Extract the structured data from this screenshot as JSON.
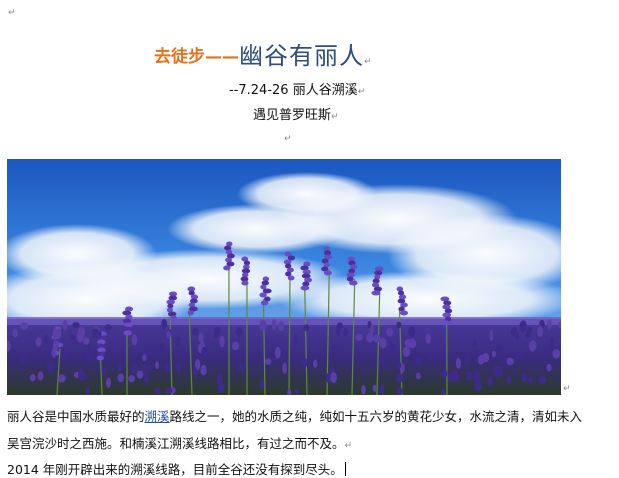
{
  "document": {
    "paragraph_mark": "↵",
    "title": {
      "prefix": "去徒步——",
      "main": "幽谷有丽人"
    },
    "subtitle_date": "--7.24-26 丽人谷溯溪",
    "subtitle_provence": "遇见普罗旺斯",
    "hero_image": {
      "subject": "lavender field under blue sky"
    },
    "paragraphs": [
      {
        "before": "丽人谷是中国水质最好的",
        "link": "溯溪",
        "after": "路线之一，她的水质之纯，纯如十五六岁的黄花少女，水流之清，清如未入"
      },
      {
        "text": "吴宫浣沙时之西施。和楠溪江溯溪线路相比，有过之而不及。"
      },
      {
        "text": "2014 年刚开辟出来的溯溪线路，目前全谷还没有探到尽头。"
      }
    ]
  },
  "colors": {
    "title_prefix": "#e0741e",
    "title_main": "#2f4d7e",
    "link": "#1f4f9e",
    "sky_top": "#1e5fc4",
    "lavender": "#5a3fa6"
  }
}
